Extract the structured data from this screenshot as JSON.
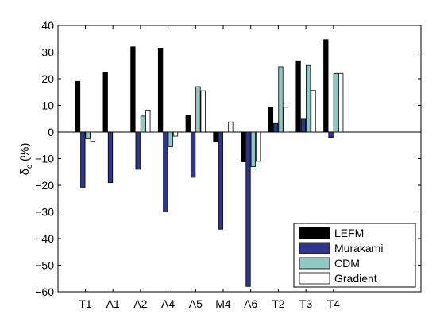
{
  "chart_data": {
    "type": "bar",
    "categories": [
      "T1",
      "A1",
      "A2",
      "A4",
      "A5",
      "M4",
      "A6",
      "T2",
      "T3",
      "T4"
    ],
    "series": [
      {
        "name": "LEFM",
        "color": "#000000",
        "values": [
          19,
          22.3,
          32,
          31.5,
          6.2,
          -3.6,
          -11.2,
          9.3,
          26.5,
          34.7
        ]
      },
      {
        "name": "Murakami",
        "color": "#2f358a",
        "values": [
          -21,
          -19,
          -14,
          -30,
          -17,
          -36.5,
          -58,
          3.2,
          4.8,
          -2
        ]
      },
      {
        "name": "CDM",
        "color": "#8fc7c3",
        "values": [
          -2.5,
          0,
          6,
          -5.5,
          17,
          0,
          -13,
          24.5,
          25,
          22
        ]
      },
      {
        "name": "Gradient",
        "color": "#ffffff",
        "values": [
          -3.5,
          0,
          8.2,
          -1.5,
          15.5,
          3.8,
          -11,
          9.3,
          15.6,
          22
        ]
      }
    ],
    "ylabel_symbol": "δ",
    "ylabel_subscript": "c",
    "ylabel_unit": "(%)",
    "ylim": [
      -60,
      40
    ],
    "yticks": [
      -60,
      -50,
      -40,
      -30,
      -20,
      -10,
      0,
      10,
      20,
      30,
      40
    ],
    "grid": false,
    "legend_position": "bottom-right"
  }
}
